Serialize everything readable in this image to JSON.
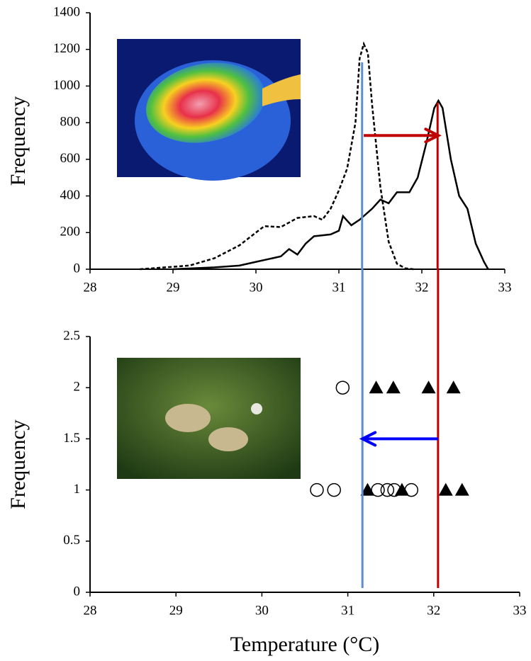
{
  "chart_data": [
    {
      "type": "line",
      "ylabel": "Frequency",
      "xlim": [
        28,
        33
      ],
      "xticks": [
        28,
        29,
        30,
        31,
        32,
        33
      ],
      "ylim": [
        0,
        1400
      ],
      "yticks": [
        0,
        200,
        400,
        600,
        800,
        1000,
        1200,
        1400
      ],
      "series": [
        {
          "color": "#000000",
          "dash": true,
          "x": [
            28.6,
            29.2,
            29.5,
            29.8,
            30.0,
            30.1,
            30.3,
            30.5,
            30.7,
            30.8,
            30.9,
            31.0,
            31.1,
            31.2,
            31.25,
            31.3,
            31.35,
            31.4,
            31.5,
            31.6,
            31.7,
            31.8,
            31.9
          ],
          "values": [
            0,
            20,
            60,
            130,
            200,
            235,
            230,
            280,
            290,
            270,
            330,
            430,
            550,
            800,
            1150,
            1230,
            1180,
            900,
            450,
            150,
            30,
            5,
            0
          ]
        },
        {
          "color": "#000000",
          "dash": false,
          "x": [
            29.0,
            29.5,
            29.8,
            30.0,
            30.2,
            30.3,
            30.4,
            30.5,
            30.6,
            30.7,
            30.9,
            31.0,
            31.05,
            31.15,
            31.25,
            31.4,
            31.5,
            31.6,
            31.7,
            31.85,
            31.95,
            32.05,
            32.15,
            32.2,
            32.25,
            32.35,
            32.45,
            32.55,
            32.65,
            32.75,
            32.8
          ],
          "values": [
            0,
            10,
            20,
            40,
            60,
            70,
            110,
            80,
            140,
            180,
            190,
            210,
            290,
            240,
            270,
            330,
            380,
            360,
            420,
            420,
            500,
            680,
            880,
            920,
            880,
            600,
            400,
            330,
            140,
            40,
            0
          ]
        }
      ],
      "vlines": [
        {
          "value": 31.28,
          "color": "#5b8fd0"
        },
        {
          "value": 32.19,
          "color": "#c00000"
        }
      ],
      "arrows": [
        {
          "from": 31.3,
          "to": 32.2,
          "y": 730,
          "color": "#c00000"
        }
      ]
    },
    {
      "type": "scatter",
      "ylabel": "Frequency",
      "xlabel": "Temperature (°C)",
      "xlim": [
        28,
        33
      ],
      "xticks": [
        28,
        29,
        30,
        31,
        32,
        33
      ],
      "ylim": [
        0,
        2.5
      ],
      "yticks": [
        0,
        0.5,
        1,
        1.5,
        2,
        2.5
      ],
      "series": [
        {
          "marker": "circle",
          "color": "#000000",
          "x": [
            30.94,
            30.64,
            30.84,
            31.35,
            31.46,
            31.54,
            31.74
          ],
          "values": [
            2,
            1,
            1,
            1,
            1,
            1,
            1
          ]
        },
        {
          "marker": "triangle",
          "color": "#000000",
          "x": [
            31.33,
            31.53,
            31.94,
            32.23,
            31.23,
            31.63,
            32.14,
            32.33
          ],
          "values": [
            2,
            2,
            2,
            2,
            1,
            1,
            1,
            1
          ]
        }
      ],
      "vlines": [
        {
          "value": 31.17,
          "color": "#5b8fd0"
        },
        {
          "value": 32.05,
          "color": "#c00000"
        }
      ],
      "arrows": [
        {
          "from": 32.05,
          "to": 31.17,
          "y": 1.5,
          "color": "#0000ff"
        }
      ]
    }
  ]
}
